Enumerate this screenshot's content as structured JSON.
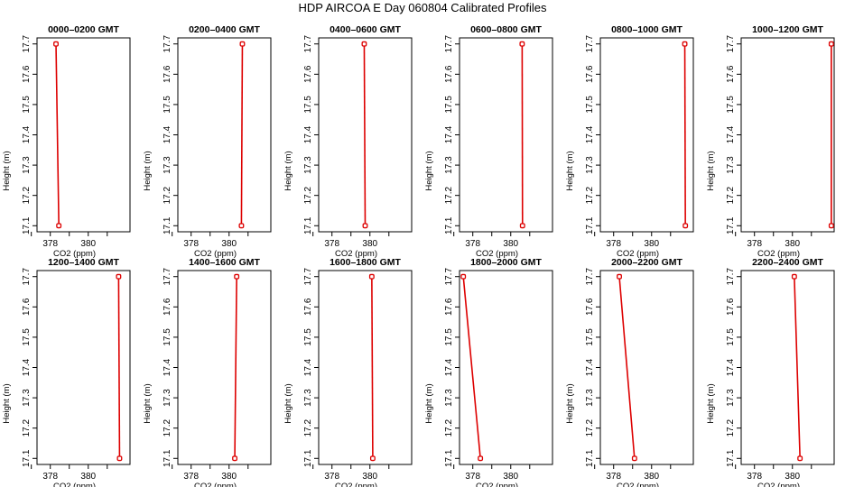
{
  "title": "HDP  AIRCOA E  Day 060804  Calibrated Profiles",
  "chart_data": {
    "type": "line",
    "xlabel": "CO2 (ppm)",
    "ylabel": "Height (m)",
    "xlim": [
      377.3,
      382.2
    ],
    "ylim": [
      17.08,
      17.72
    ],
    "xticks": [
      378,
      380
    ],
    "yticks": [
      17.1,
      17.2,
      17.3,
      17.4,
      17.5,
      17.6,
      17.7
    ],
    "grid": false,
    "panels": [
      {
        "title": "0000–0200 GMT",
        "x": [
          378.3,
          378.45
        ],
        "y": [
          17.7,
          17.1
        ]
      },
      {
        "title": "0200–0400 GMT",
        "x": [
          380.7,
          380.65
        ],
        "y": [
          17.7,
          17.1
        ]
      },
      {
        "title": "0400–0600 GMT",
        "x": [
          379.7,
          379.75
        ],
        "y": [
          17.7,
          17.1
        ]
      },
      {
        "title": "0600–0800 GMT",
        "x": [
          380.6,
          380.62
        ],
        "y": [
          17.7,
          17.1
        ]
      },
      {
        "title": "0800–1000 GMT",
        "x": [
          381.75,
          381.78
        ],
        "y": [
          17.7,
          17.1
        ]
      },
      {
        "title": "1000–1200 GMT",
        "x": [
          382.05,
          382.05
        ],
        "y": [
          17.7,
          17.1
        ]
      },
      {
        "title": "1200–1400 GMT",
        "x": [
          381.6,
          381.65
        ],
        "y": [
          17.7,
          17.1
        ]
      },
      {
        "title": "1400–1600 GMT",
        "x": [
          380.4,
          380.3
        ],
        "y": [
          17.7,
          17.1
        ]
      },
      {
        "title": "1600–1800 GMT",
        "x": [
          380.1,
          380.15
        ],
        "y": [
          17.7,
          17.1
        ]
      },
      {
        "title": "1800–2000 GMT",
        "x": [
          377.5,
          378.4
        ],
        "y": [
          17.7,
          17.1
        ]
      },
      {
        "title": "2000–2200 GMT",
        "x": [
          378.3,
          379.1
        ],
        "y": [
          17.7,
          17.1
        ]
      },
      {
        "title": "2200–2400 GMT",
        "x": [
          380.1,
          380.4
        ],
        "y": [
          17.7,
          17.1
        ]
      }
    ]
  },
  "colors": {
    "series": "#dd0000",
    "axes": "#000000"
  }
}
